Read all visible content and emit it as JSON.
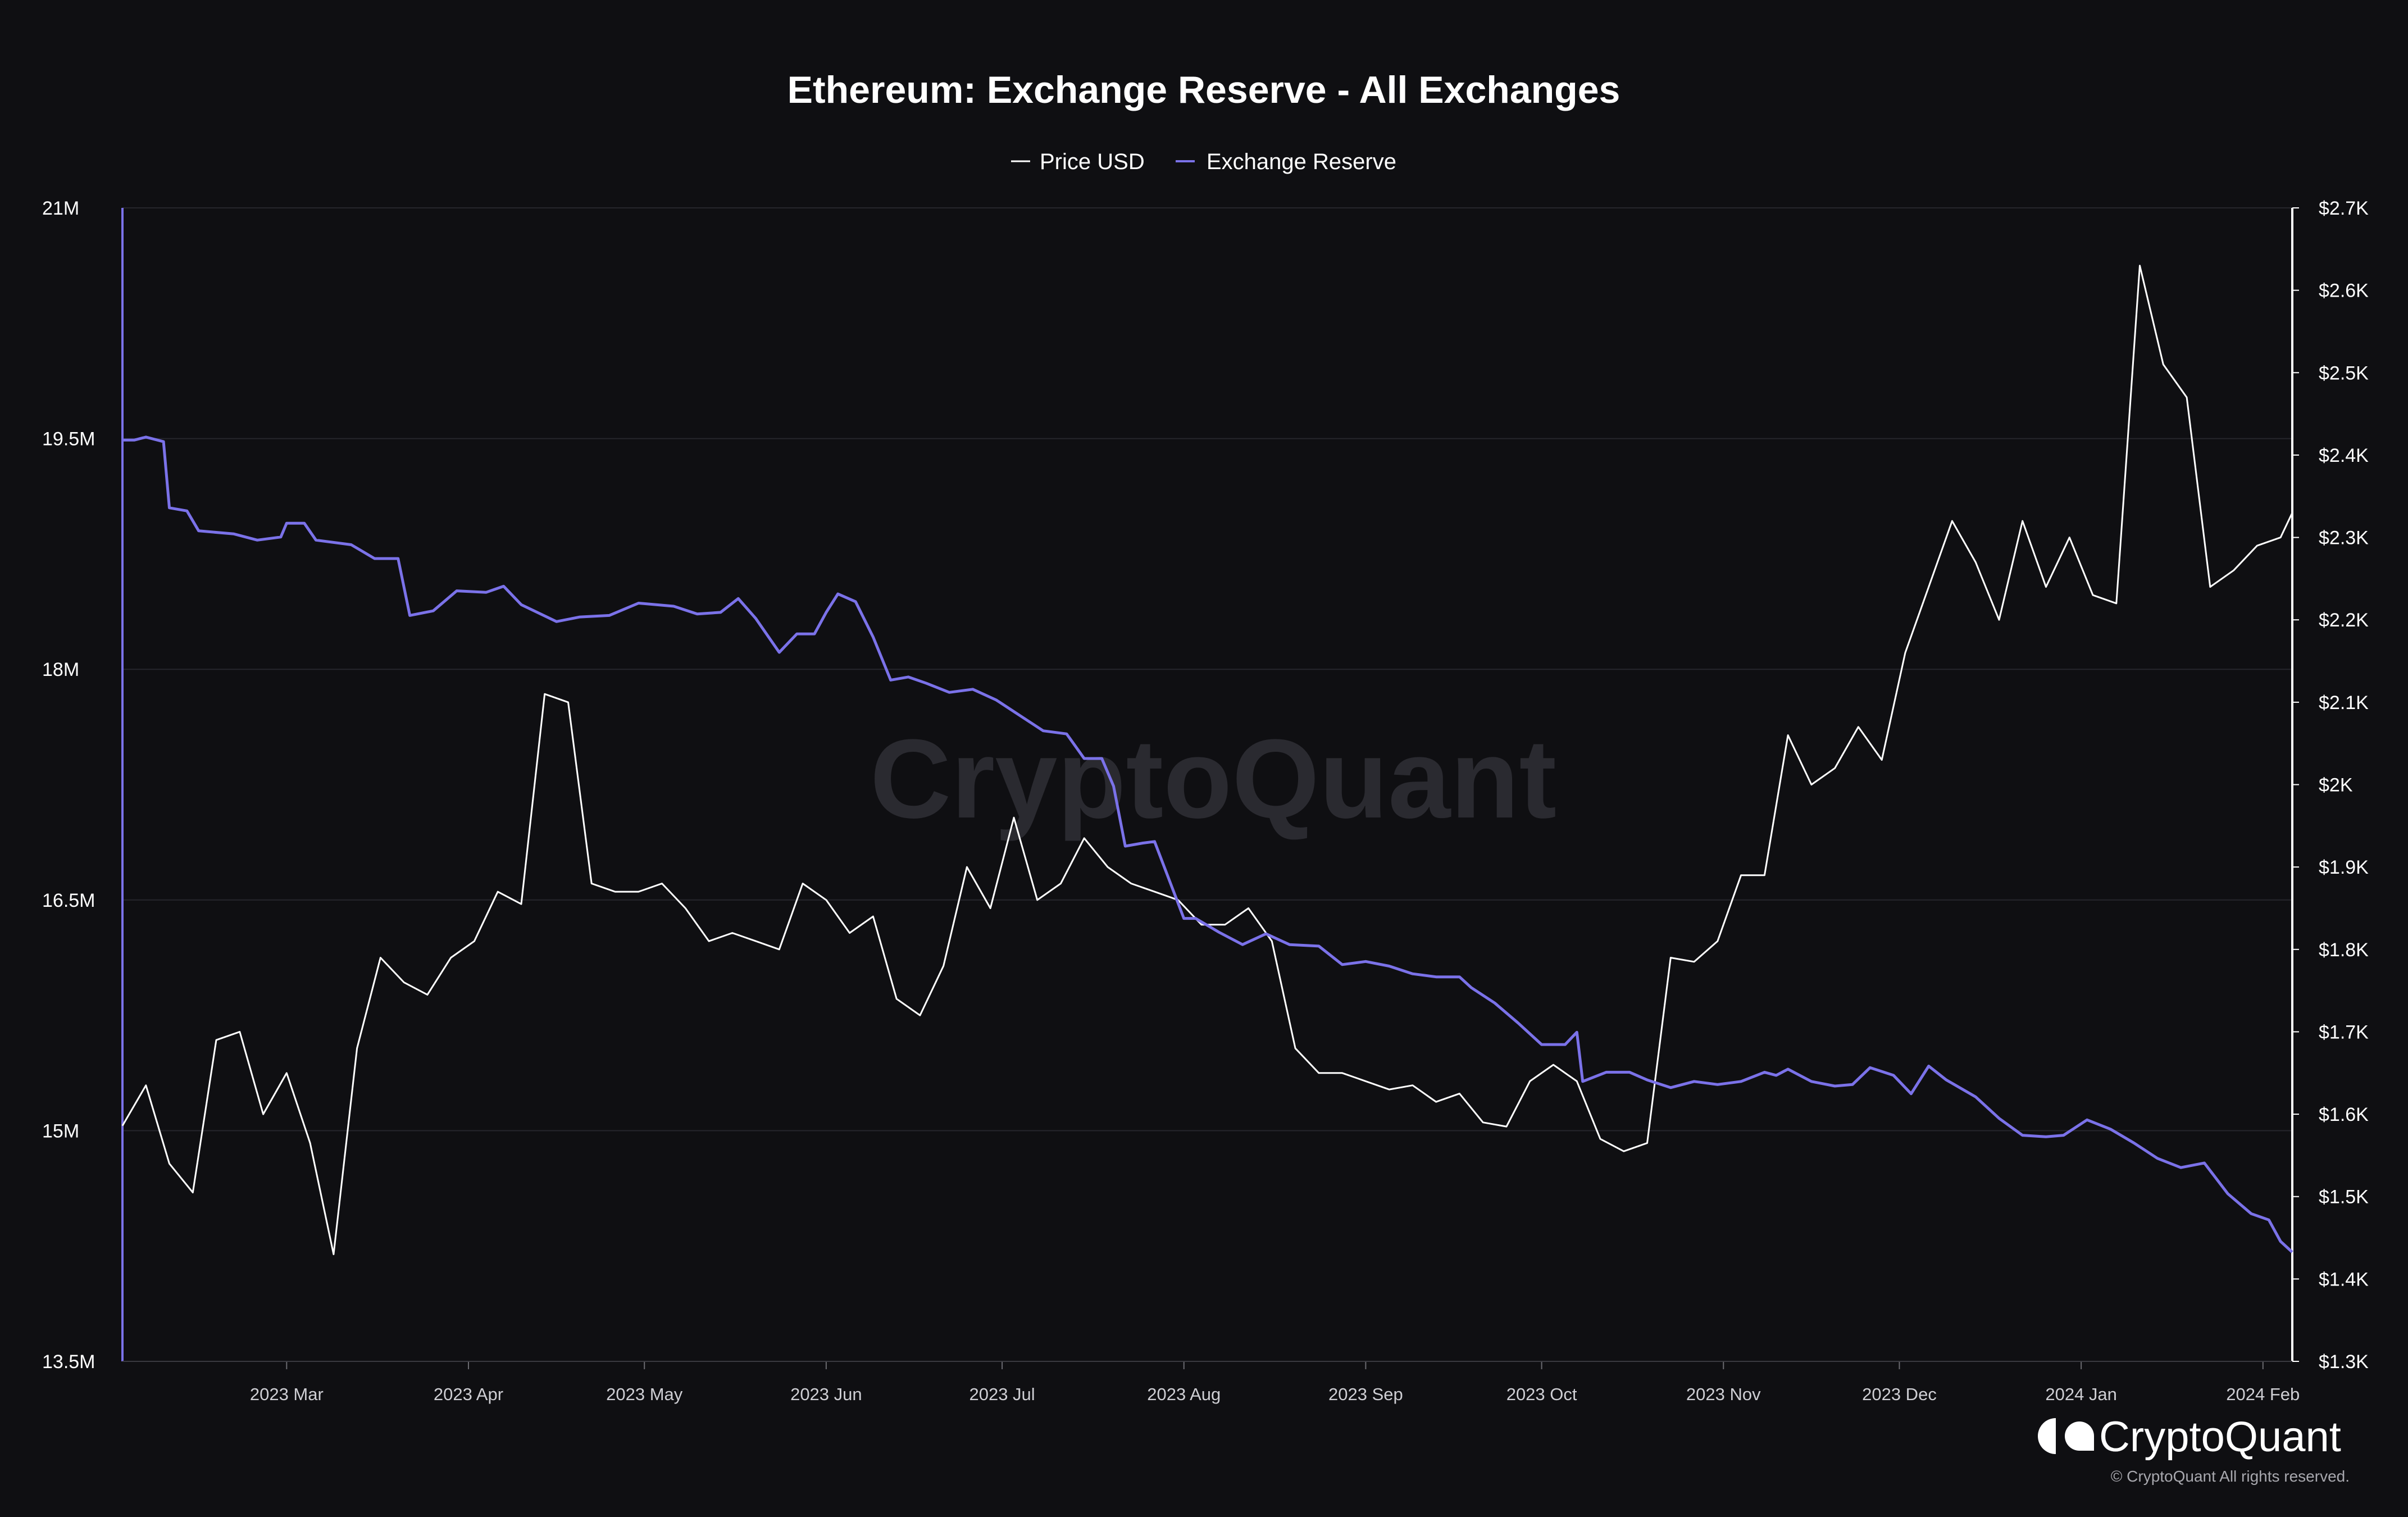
{
  "chart_data": {
    "type": "line",
    "title": "Ethereum: Exchange Reserve - All Exchanges",
    "legend": [
      {
        "label": "Price USD",
        "color": "#ffffff"
      },
      {
        "label": "Exchange Reserve",
        "color": "#7b72e9"
      }
    ],
    "legend_position": "top-center",
    "grid": true,
    "x_ticks": [
      "2023 Mar",
      "2023 Apr",
      "2023 May",
      "2023 Jun",
      "2023 Jul",
      "2023 Aug",
      "2023 Sep",
      "2023 Oct",
      "2023 Nov",
      "2023 Dec",
      "2024 Jan",
      "2024 Feb"
    ],
    "x_range": [
      "2023-02-01",
      "2024-02-06"
    ],
    "y_left": {
      "ticks": [
        "21M",
        "19.5M",
        "18M",
        "16.5M",
        "15M",
        "13.5M"
      ],
      "range": [
        13500000,
        21000000
      ]
    },
    "y_right": {
      "ticks": [
        "$2.7K",
        "$2.6K",
        "$2.5K",
        "$2.4K",
        "$2.3K",
        "$2.2K",
        "$2.1K",
        "$2K",
        "$1.9K",
        "$1.8K",
        "$1.7K",
        "$1.6K",
        "$1.5K",
        "$1.4K",
        "$1.3K"
      ],
      "range": [
        1300,
        2700
      ]
    },
    "series": [
      {
        "name": "Price USD",
        "axis": "right",
        "color": "#ffffff",
        "points": [
          [
            "2023-02-01",
            1586
          ],
          [
            "2023-02-05",
            1635
          ],
          [
            "2023-02-09",
            1540
          ],
          [
            "2023-02-13",
            1505
          ],
          [
            "2023-02-17",
            1690
          ],
          [
            "2023-02-21",
            1700
          ],
          [
            "2023-02-25",
            1600
          ],
          [
            "2023-03-01",
            1650
          ],
          [
            "2023-03-05",
            1565
          ],
          [
            "2023-03-09",
            1430
          ],
          [
            "2023-03-13",
            1680
          ],
          [
            "2023-03-17",
            1790
          ],
          [
            "2023-03-21",
            1760
          ],
          [
            "2023-03-25",
            1745
          ],
          [
            "2023-03-29",
            1790
          ],
          [
            "2023-04-02",
            1810
          ],
          [
            "2023-04-06",
            1870
          ],
          [
            "2023-04-10",
            1855
          ],
          [
            "2023-04-14",
            2110
          ],
          [
            "2023-04-18",
            2100
          ],
          [
            "2023-04-22",
            1880
          ],
          [
            "2023-04-26",
            1870
          ],
          [
            "2023-04-30",
            1870
          ],
          [
            "2023-05-04",
            1880
          ],
          [
            "2023-05-08",
            1850
          ],
          [
            "2023-05-12",
            1810
          ],
          [
            "2023-05-16",
            1820
          ],
          [
            "2023-05-20",
            1810
          ],
          [
            "2023-05-24",
            1800
          ],
          [
            "2023-05-28",
            1880
          ],
          [
            "2023-06-01",
            1860
          ],
          [
            "2023-06-05",
            1820
          ],
          [
            "2023-06-09",
            1840
          ],
          [
            "2023-06-13",
            1740
          ],
          [
            "2023-06-17",
            1720
          ],
          [
            "2023-06-21",
            1780
          ],
          [
            "2023-06-25",
            1900
          ],
          [
            "2023-06-29",
            1850
          ],
          [
            "2023-07-03",
            1960
          ],
          [
            "2023-07-07",
            1860
          ],
          [
            "2023-07-11",
            1880
          ],
          [
            "2023-07-15",
            1935
          ],
          [
            "2023-07-19",
            1900
          ],
          [
            "2023-07-23",
            1880
          ],
          [
            "2023-07-27",
            1870
          ],
          [
            "2023-07-31",
            1860
          ],
          [
            "2023-08-04",
            1830
          ],
          [
            "2023-08-08",
            1830
          ],
          [
            "2023-08-12",
            1850
          ],
          [
            "2023-08-16",
            1810
          ],
          [
            "2023-08-20",
            1680
          ],
          [
            "2023-08-24",
            1650
          ],
          [
            "2023-08-28",
            1650
          ],
          [
            "2023-09-01",
            1640
          ],
          [
            "2023-09-05",
            1630
          ],
          [
            "2023-09-09",
            1635
          ],
          [
            "2023-09-13",
            1615
          ],
          [
            "2023-09-17",
            1625
          ],
          [
            "2023-09-21",
            1590
          ],
          [
            "2023-09-25",
            1585
          ],
          [
            "2023-09-29",
            1640
          ],
          [
            "2023-10-03",
            1660
          ],
          [
            "2023-10-07",
            1640
          ],
          [
            "2023-10-11",
            1570
          ],
          [
            "2023-10-15",
            1555
          ],
          [
            "2023-10-19",
            1565
          ],
          [
            "2023-10-23",
            1790
          ],
          [
            "2023-10-27",
            1785
          ],
          [
            "2023-10-31",
            1810
          ],
          [
            "2023-11-04",
            1890
          ],
          [
            "2023-11-08",
            1890
          ],
          [
            "2023-11-12",
            2060
          ],
          [
            "2023-11-16",
            2000
          ],
          [
            "2023-11-20",
            2020
          ],
          [
            "2023-11-24",
            2070
          ],
          [
            "2023-11-28",
            2030
          ],
          [
            "2023-12-02",
            2160
          ],
          [
            "2023-12-06",
            2240
          ],
          [
            "2023-12-10",
            2320
          ],
          [
            "2023-12-14",
            2270
          ],
          [
            "2023-12-18",
            2200
          ],
          [
            "2023-12-22",
            2320
          ],
          [
            "2023-12-26",
            2240
          ],
          [
            "2023-12-30",
            2300
          ],
          [
            "2024-01-03",
            2230
          ],
          [
            "2024-01-07",
            2220
          ],
          [
            "2024-01-11",
            2630
          ],
          [
            "2024-01-15",
            2510
          ],
          [
            "2024-01-19",
            2470
          ],
          [
            "2024-01-23",
            2240
          ],
          [
            "2024-01-27",
            2260
          ],
          [
            "2024-01-31",
            2290
          ],
          [
            "2024-02-04",
            2300
          ],
          [
            "2024-02-06",
            2330
          ]
        ]
      },
      {
        "name": "Exchange Reserve",
        "axis": "left",
        "color": "#7b72e9",
        "points": [
          [
            "2023-02-01",
            19490000
          ],
          [
            "2023-02-03",
            19490000
          ],
          [
            "2023-02-05",
            19510000
          ],
          [
            "2023-02-08",
            19480000
          ],
          [
            "2023-02-09",
            19050000
          ],
          [
            "2023-02-12",
            19030000
          ],
          [
            "2023-02-14",
            18900000
          ],
          [
            "2023-02-20",
            18880000
          ],
          [
            "2023-02-24",
            18840000
          ],
          [
            "2023-02-28",
            18860000
          ],
          [
            "2023-03-01",
            18950000
          ],
          [
            "2023-03-04",
            18950000
          ],
          [
            "2023-03-06",
            18840000
          ],
          [
            "2023-03-12",
            18810000
          ],
          [
            "2023-03-16",
            18720000
          ],
          [
            "2023-03-20",
            18720000
          ],
          [
            "2023-03-22",
            18350000
          ],
          [
            "2023-03-26",
            18380000
          ],
          [
            "2023-03-30",
            18510000
          ],
          [
            "2023-04-04",
            18500000
          ],
          [
            "2023-04-07",
            18540000
          ],
          [
            "2023-04-10",
            18420000
          ],
          [
            "2023-04-16",
            18310000
          ],
          [
            "2023-04-20",
            18340000
          ],
          [
            "2023-04-25",
            18350000
          ],
          [
            "2023-04-30",
            18430000
          ],
          [
            "2023-05-06",
            18410000
          ],
          [
            "2023-05-10",
            18360000
          ],
          [
            "2023-05-14",
            18370000
          ],
          [
            "2023-05-17",
            18460000
          ],
          [
            "2023-05-20",
            18330000
          ],
          [
            "2023-05-24",
            18110000
          ],
          [
            "2023-05-27",
            18230000
          ],
          [
            "2023-05-30",
            18230000
          ],
          [
            "2023-06-01",
            18370000
          ],
          [
            "2023-06-03",
            18490000
          ],
          [
            "2023-06-06",
            18440000
          ],
          [
            "2023-06-09",
            18210000
          ],
          [
            "2023-06-12",
            17930000
          ],
          [
            "2023-06-15",
            17950000
          ],
          [
            "2023-06-18",
            17910000
          ],
          [
            "2023-06-22",
            17850000
          ],
          [
            "2023-06-26",
            17870000
          ],
          [
            "2023-06-30",
            17800000
          ],
          [
            "2023-07-04",
            17700000
          ],
          [
            "2023-07-08",
            17600000
          ],
          [
            "2023-07-12",
            17580000
          ],
          [
            "2023-07-15",
            17420000
          ],
          [
            "2023-07-18",
            17420000
          ],
          [
            "2023-07-20",
            17240000
          ],
          [
            "2023-07-22",
            16850000
          ],
          [
            "2023-07-25",
            16870000
          ],
          [
            "2023-07-27",
            16880000
          ],
          [
            "2023-08-01",
            16380000
          ],
          [
            "2023-08-03",
            16380000
          ],
          [
            "2023-08-07",
            16290000
          ],
          [
            "2023-08-11",
            16210000
          ],
          [
            "2023-08-15",
            16280000
          ],
          [
            "2023-08-19",
            16210000
          ],
          [
            "2023-08-24",
            16200000
          ],
          [
            "2023-08-28",
            16080000
          ],
          [
            "2023-09-01",
            16100000
          ],
          [
            "2023-09-05",
            16070000
          ],
          [
            "2023-09-09",
            16020000
          ],
          [
            "2023-09-13",
            16000000
          ],
          [
            "2023-09-17",
            16000000
          ],
          [
            "2023-09-19",
            15930000
          ],
          [
            "2023-09-23",
            15830000
          ],
          [
            "2023-09-27",
            15700000
          ],
          [
            "2023-10-01",
            15560000
          ],
          [
            "2023-10-05",
            15560000
          ],
          [
            "2023-10-07",
            15640000
          ],
          [
            "2023-10-08",
            15320000
          ],
          [
            "2023-10-12",
            15380000
          ],
          [
            "2023-10-16",
            15380000
          ],
          [
            "2023-10-19",
            15330000
          ],
          [
            "2023-10-23",
            15280000
          ],
          [
            "2023-10-27",
            15320000
          ],
          [
            "2023-10-31",
            15300000
          ],
          [
            "2023-11-04",
            15320000
          ],
          [
            "2023-11-08",
            15380000
          ],
          [
            "2023-11-10",
            15360000
          ],
          [
            "2023-11-12",
            15400000
          ],
          [
            "2023-11-16",
            15320000
          ],
          [
            "2023-11-20",
            15290000
          ],
          [
            "2023-11-23",
            15300000
          ],
          [
            "2023-11-26",
            15410000
          ],
          [
            "2023-11-30",
            15360000
          ],
          [
            "2023-12-03",
            15240000
          ],
          [
            "2023-12-06",
            15420000
          ],
          [
            "2023-12-09",
            15330000
          ],
          [
            "2023-12-14",
            15220000
          ],
          [
            "2023-12-18",
            15080000
          ],
          [
            "2023-12-22",
            14970000
          ],
          [
            "2023-12-26",
            14960000
          ],
          [
            "2023-12-29",
            14970000
          ],
          [
            "2024-01-02",
            15070000
          ],
          [
            "2024-01-06",
            15010000
          ],
          [
            "2024-01-10",
            14920000
          ],
          [
            "2024-01-14",
            14820000
          ],
          [
            "2024-01-18",
            14760000
          ],
          [
            "2024-01-22",
            14790000
          ],
          [
            "2024-01-26",
            14590000
          ],
          [
            "2024-01-30",
            14460000
          ],
          [
            "2024-02-02",
            14420000
          ],
          [
            "2024-02-04",
            14280000
          ],
          [
            "2024-02-06",
            14210000
          ]
        ]
      }
    ]
  },
  "brand": {
    "name": "CryptoQuant",
    "copyright": "© CryptoQuant All rights reserved.",
    "watermark": "CryptoQuant"
  }
}
